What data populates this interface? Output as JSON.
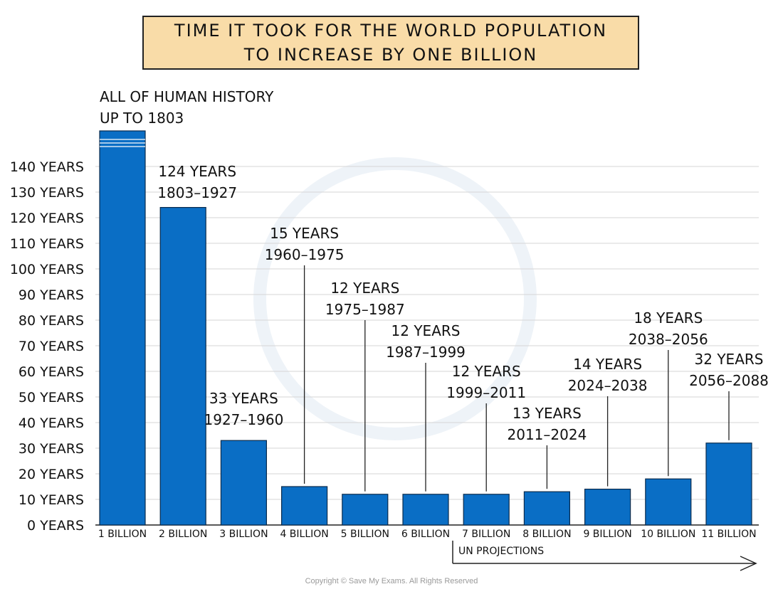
{
  "title": "TIME IT TOOK FOR THE WORLD POPULATION TO INCREASE BY ONE BILLION",
  "copyright": "Copyright © Save My Exams. All Rights Reserved",
  "projection_label": "UN PROJECTIONS",
  "colors": {
    "bar": "#0a6ec5",
    "title_bg": "#f9dca8",
    "grid": "#d6d6d6",
    "text": "#111111"
  },
  "chart_data": {
    "type": "bar",
    "title": "TIME IT TOOK FOR THE WORLD POPULATION TO INCREASE BY ONE BILLION",
    "xlabel": "",
    "ylabel": "",
    "ylim": [
      0,
      140
    ],
    "grid": true,
    "y_ticks": [
      {
        "value": 0,
        "label": "0 YEARS"
      },
      {
        "value": 10,
        "label": "10 YEARS"
      },
      {
        "value": 20,
        "label": "20 YEARS"
      },
      {
        "value": 30,
        "label": "30 YEARS"
      },
      {
        "value": 40,
        "label": "40 YEARS"
      },
      {
        "value": 50,
        "label": "50 YEARS"
      },
      {
        "value": 60,
        "label": "60 YEARS"
      },
      {
        "value": 70,
        "label": "70 YEARS"
      },
      {
        "value": 80,
        "label": "80 YEARS"
      },
      {
        "value": 90,
        "label": "90 YEARS"
      },
      {
        "value": 100,
        "label": "100 YEARS"
      },
      {
        "value": 110,
        "label": "110 YEARS"
      },
      {
        "value": 120,
        "label": "120 YEARS"
      },
      {
        "value": 130,
        "label": "130 YEARS"
      },
      {
        "value": 140,
        "label": "140 YEARS"
      }
    ],
    "categories": [
      "1 BILLION",
      "2 BILLION",
      "3 BILLION",
      "4 BILLION",
      "5 BILLION",
      "6 BILLION",
      "7 BILLION",
      "8 BILLION",
      "9 BILLION",
      "10 BILLION",
      "11 BILLION"
    ],
    "values": [
      null,
      124,
      33,
      15,
      12,
      12,
      12,
      13,
      14,
      18,
      32
    ],
    "bars": [
      {
        "category": "1 BILLION",
        "value": null,
        "truncated": true,
        "label_line1": "ALL OF HUMAN HISTORY",
        "label_line2": "UP TO 1803"
      },
      {
        "category": "2 BILLION",
        "value": 124,
        "label_line1": "124 YEARS",
        "label_line2": "1803–1927"
      },
      {
        "category": "3 BILLION",
        "value": 33,
        "label_line1": "33 YEARS",
        "label_line2": "1927–1960"
      },
      {
        "category": "4 BILLION",
        "value": 15,
        "label_line1": "15 YEARS",
        "label_line2": "1960–1975"
      },
      {
        "category": "5 BILLION",
        "value": 12,
        "label_line1": "12 YEARS",
        "label_line2": "1975–1987"
      },
      {
        "category": "6 BILLION",
        "value": 12,
        "label_line1": "12 YEARS",
        "label_line2": "1987–1999"
      },
      {
        "category": "7 BILLION",
        "value": 12,
        "label_line1": "12 YEARS",
        "label_line2": "1999–2011"
      },
      {
        "category": "8 BILLION",
        "value": 13,
        "label_line1": "13 YEARS",
        "label_line2": "2011–2024"
      },
      {
        "category": "9 BILLION",
        "value": 14,
        "label_line1": "14 YEARS",
        "label_line2": "2024–2038"
      },
      {
        "category": "10 BILLION",
        "value": 18,
        "label_line1": "18 YEARS",
        "label_line2": "2038–2056"
      },
      {
        "category": "11 BILLION",
        "value": 32,
        "label_line1": "32 YEARS",
        "label_line2": "2056–2088"
      }
    ],
    "projection_range": [
      "7 BILLION",
      "11 BILLION"
    ]
  }
}
